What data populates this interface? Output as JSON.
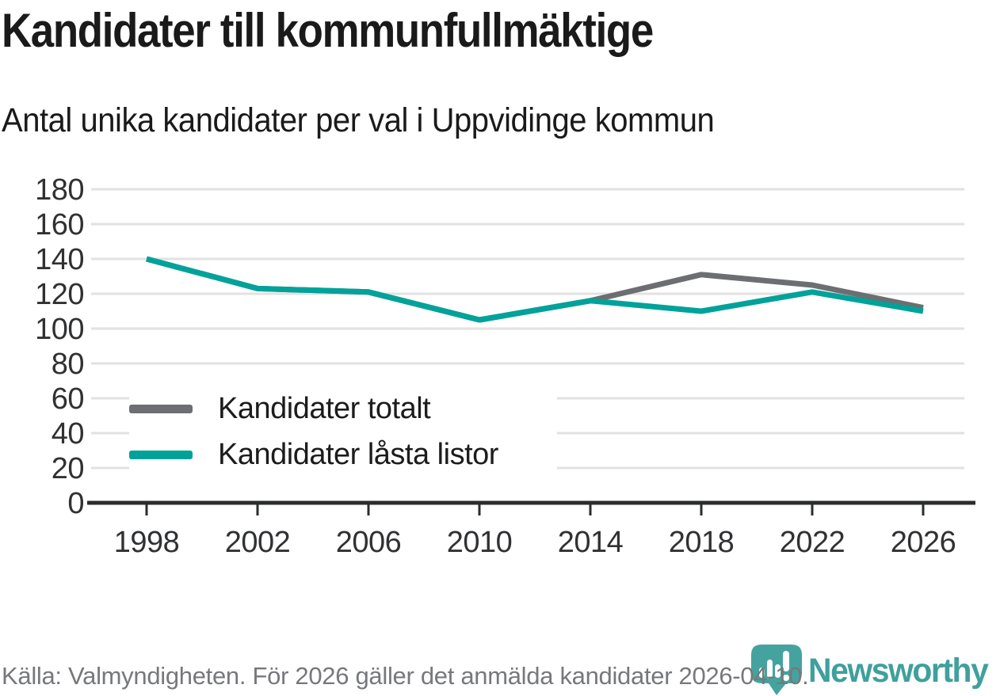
{
  "header": {
    "title": "Kandidater till kommunfullmäktige",
    "subtitle": "Antal unika kandidater per val i Uppvidinge kommun"
  },
  "chart_data": {
    "type": "line",
    "x": [
      "1998",
      "2002",
      "2006",
      "2010",
      "2014",
      "2018",
      "2022",
      "2026"
    ],
    "series": [
      {
        "name": "Kandidater totalt",
        "color": "#6d6e71",
        "values": [
          140,
          123,
          121,
          105,
          116,
          131,
          125,
          112
        ]
      },
      {
        "name": "Kandidater låsta listor",
        "color": "#00a29a",
        "values": [
          140,
          123,
          121,
          105,
          116,
          110,
          121,
          110
        ]
      }
    ],
    "title": "Kandidater till kommunfullmäktige",
    "subtitle": "Antal unika kandidater per val i Uppvidinge kommun",
    "xlabel": "",
    "ylabel": "",
    "ylim": [
      0,
      180
    ],
    "ytick_step": 20,
    "yticks": [
      0,
      20,
      40,
      60,
      80,
      100,
      120,
      140,
      160,
      180
    ],
    "grid": "horizontal",
    "legend_position": "inside-left"
  },
  "footer": {
    "source_note": "Källa: Valmyndigheten. För 2026 gäller det anmälda kandidater 2026-04-10."
  },
  "logo": {
    "text": "Newsworthy"
  },
  "colors": {
    "total_line": "#6d6e71",
    "locked_line": "#00a29a",
    "grid": "#e2e2e2",
    "axis": "#2b2c2e",
    "text": "#1a1a1a",
    "muted_text": "#77787b",
    "logo_teal": "#45a39f"
  }
}
